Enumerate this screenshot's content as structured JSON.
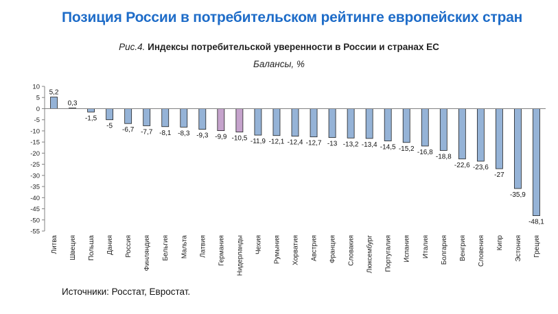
{
  "header": {
    "title": "Позиция России в потребительском рейтинге европейских стран"
  },
  "figure": {
    "prefix": "Рис.4.",
    "title": "Индексы потребительской уверенности в России и странах ЕС",
    "subtitle": "Балансы, %"
  },
  "footer": {
    "source": "Источники: Росстат, Евростат."
  },
  "colors": {
    "bar_default": "#95b3d7",
    "bar_highlight": "#c5a3cc",
    "bar_stroke": "#1f1f1f",
    "axis": "#808080"
  },
  "chart_data": {
    "type": "bar",
    "title": "Индексы потребительской уверенности в России и странах ЕС",
    "subtitle": "Балансы, %",
    "xlabel": "",
    "ylabel": "",
    "ylim": [
      -55,
      10
    ],
    "yticks": [
      10,
      5,
      0,
      -5,
      -10,
      -15,
      -20,
      -25,
      -30,
      -35,
      -40,
      -45,
      -50,
      -55
    ],
    "grid": false,
    "legend": "none",
    "categories": [
      "Литва",
      "Швеция",
      "Польша",
      "Дания",
      "Россия",
      "Финляндия",
      "Бельгия",
      "Мальта",
      "Латвия",
      "Германия",
      "Нидерланды",
      "Чехия",
      "Румыния",
      "Хорватия",
      "Австрия",
      "Франция",
      "Словакия",
      "Люксембург",
      "Португалия",
      "Испания",
      "Италия",
      "Болгария",
      "Венгрия",
      "Словения",
      "Кипр",
      "Эстония",
      "Греция"
    ],
    "values": [
      5.2,
      0.3,
      -1.5,
      -5,
      -6.7,
      -7.7,
      -8.1,
      -8.3,
      -9.3,
      -9.9,
      -10.5,
      -11.9,
      -12.1,
      -12.4,
      -12.7,
      -13,
      -13.2,
      -13.4,
      -14.5,
      -15.2,
      -16.8,
      -18.8,
      -22.6,
      -23.6,
      -27,
      -35.9,
      -48.1
    ],
    "value_labels": [
      "5,2",
      "0,3",
      "-1,5",
      "-5",
      "-6,7",
      "-7,7",
      "-8,1",
      "-8,3",
      "-9,3",
      "-9,9",
      "-10,5",
      "-11,9",
      "-12,1",
      "-12,4",
      "-12,7",
      "-13",
      "-13,2",
      "-13,4",
      "-14,5",
      "-15,2",
      "-16,8",
      "-18,8",
      "-22,6",
      "-23,6",
      "-27",
      "-35,9",
      "-48,1"
    ],
    "highlighted": [
      "Германия",
      "Нидерланды"
    ]
  }
}
